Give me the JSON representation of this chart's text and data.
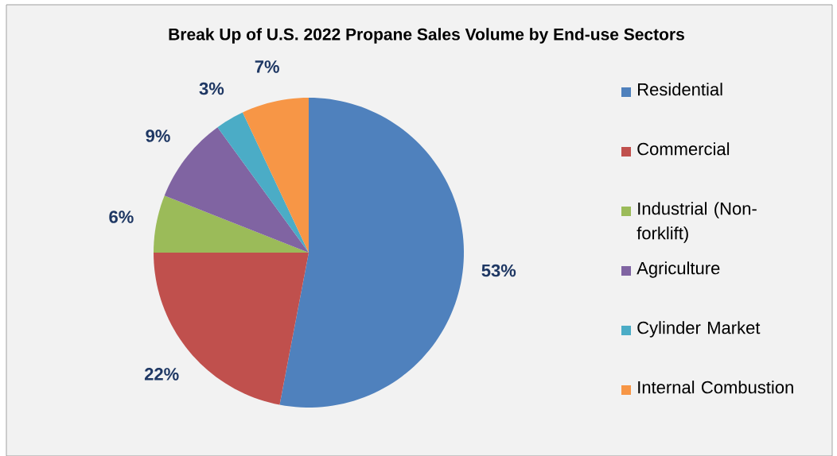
{
  "chart_data": {
    "type": "pie",
    "title": "Break Up of U.S. 2022 Propane Sales Volume by End-use Sectors",
    "categories": [
      "Residential",
      "Commercial",
      "Industrial (Non-forklift)",
      "Agriculture",
      "Cylinder Market",
      "Internal Combustion"
    ],
    "values": [
      53,
      22,
      6,
      9,
      3,
      7
    ],
    "colors": [
      "#4f81bd",
      "#c0504d",
      "#9bbb59",
      "#8064a2",
      "#4bacc6",
      "#f79646"
    ],
    "value_labels": [
      "53%",
      "22%",
      "6%",
      "9%",
      "3%",
      "7%"
    ],
    "legend": "right"
  }
}
